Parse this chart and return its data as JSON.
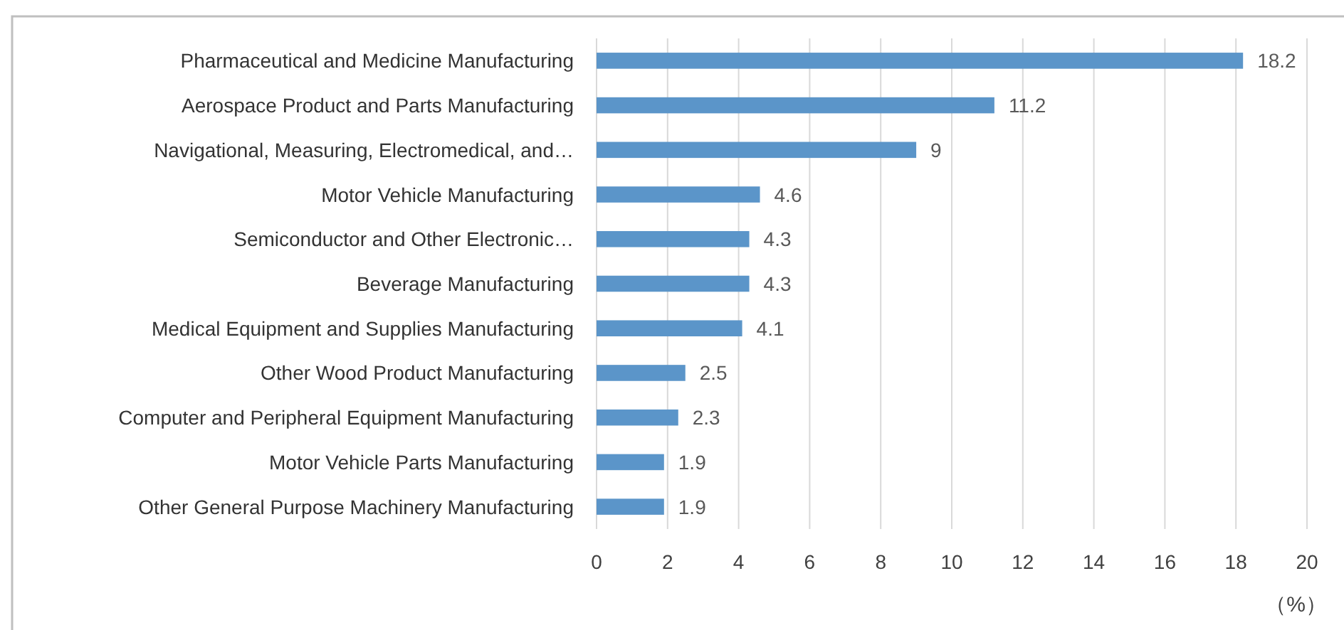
{
  "chart_data": {
    "type": "bar",
    "orientation": "horizontal",
    "categories": [
      "Pharmaceutical and Medicine Manufacturing",
      "Aerospace Product and Parts Manufacturing",
      "Navigational, Measuring, Electromedical, and…",
      "Motor Vehicle Manufacturing",
      "Semiconductor and Other Electronic…",
      "Beverage Manufacturing",
      "Medical Equipment and Supplies Manufacturing",
      "Other Wood Product Manufacturing",
      "Computer and Peripheral Equipment Manufacturing",
      "Motor Vehicle Parts Manufacturing",
      "Other General Purpose Machinery Manufacturing"
    ],
    "values": [
      18.2,
      11.2,
      9,
      4.6,
      4.3,
      4.3,
      4.1,
      2.5,
      2.3,
      1.9,
      1.9
    ],
    "color": "#5b95c9",
    "xlim": [
      0,
      20
    ],
    "xticks": [
      0,
      2,
      4,
      6,
      8,
      10,
      12,
      14,
      16,
      18,
      20
    ],
    "xlabel": "（%）",
    "data_labels": true,
    "grid": "x"
  }
}
